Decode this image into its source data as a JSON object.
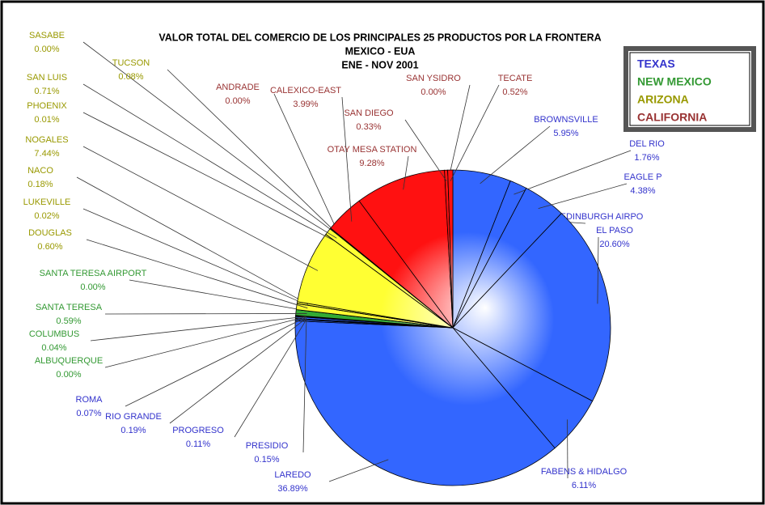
{
  "chart_data": {
    "type": "pie",
    "title": [
      "VALOR TOTAL DEL COMERCIO DE LOS PRINCIPALES 25 PRODUCTOS POR LA FRONTERA",
      "MEXICO - EUA",
      "ENE - NOV 2001"
    ],
    "legend": [
      {
        "name": "TEXAS",
        "color": "#3366ff",
        "text_color": "#3333cc"
      },
      {
        "name": "NEW MEXICO",
        "color": "#33aa33",
        "text_color": "#339933"
      },
      {
        "name": "ARIZONA",
        "color": "#ffff33",
        "text_color": "#999900"
      },
      {
        "name": "CALIFORNIA",
        "color": "#ff1111",
        "text_color": "#993333"
      }
    ],
    "categories": [
      "BROWNSVILLE",
      "DEL RIO",
      "EAGLE P",
      "EDINBURGH AIRPO",
      "EL PASO",
      "FABENS  &  HIDALGO",
      "LAREDO",
      "PRESIDIO",
      "PROGRESO",
      "RIO GRANDE",
      "ROMA",
      "ALBUQUERQUE",
      "COLUMBUS",
      "SANTA TERESA",
      "SANTA TERESA AIRPORT",
      "DOUGLAS",
      "LUKEVILLE",
      "NACO",
      "NOGALES",
      "PHOENIX",
      "SAN LUIS",
      "SASABE",
      "TUCSON",
      "ANDRADE",
      "CALEXICO-EAST",
      "OTAY MESA STATION",
      "SAN DIEGO",
      "SAN YSIDRO",
      "TECATE"
    ],
    "region": [
      0,
      0,
      0,
      0,
      0,
      0,
      0,
      0,
      0,
      0,
      0,
      1,
      1,
      1,
      1,
      2,
      2,
      2,
      2,
      2,
      2,
      2,
      2,
      3,
      3,
      3,
      3,
      3,
      3
    ],
    "values": [
      5.95,
      1.76,
      4.38,
      0,
      20.6,
      6.11,
      36.89,
      0.15,
      0.11,
      0.19,
      0.07,
      0.0,
      0.04,
      0.59,
      0.0,
      0.6,
      0.02,
      0.18,
      7.44,
      0.01,
      0.71,
      0.0,
      0.08,
      0.0,
      3.99,
      9.28,
      0.33,
      0.0,
      0.52
    ],
    "value_labels": [
      "5.95%",
      "1.76%",
      "4.38%",
      null,
      "20.60%",
      "6.11%",
      "36.89%",
      "0.15%",
      "0.11%",
      "0.19%",
      "0.07%",
      "0.00%",
      "0.04%",
      "0.59%",
      "0.00%",
      "0.60%",
      "0.02%",
      "0.18%",
      "7.44%",
      "0.01%",
      "0.71%",
      "0.00%",
      "0.08%",
      "0.00%",
      "3.99%",
      "9.28%",
      "0.33%",
      "0.00%",
      "0.52%"
    ]
  }
}
